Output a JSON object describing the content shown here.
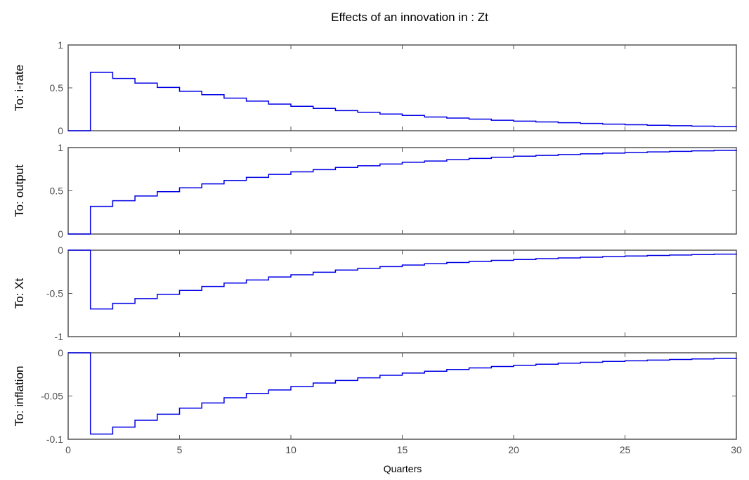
{
  "figure": {
    "title": "Effects of an innovation in : Zt",
    "xlabel": "Quarters"
  },
  "colors": {
    "line": "#0000e6",
    "frame": "#555555",
    "text": "#4d4d4d"
  },
  "chart_data": [
    {
      "type": "line",
      "step": true,
      "ylabel": "To: i-rate",
      "xlim": [
        0,
        30
      ],
      "ylim": [
        0,
        1
      ],
      "xticks": [
        0,
        5,
        10,
        15,
        20,
        25,
        30
      ],
      "yticks": [
        "0",
        "0.5",
        "1"
      ],
      "grid": false,
      "x": [
        0,
        1,
        2,
        3,
        4,
        5,
        6,
        7,
        8,
        9,
        10,
        11,
        12,
        13,
        14,
        15,
        16,
        17,
        18,
        19,
        20,
        21,
        22,
        23,
        24,
        25,
        26,
        27,
        28,
        29,
        30
      ],
      "values": [
        0,
        0.68,
        0.61,
        0.555,
        0.505,
        0.46,
        0.42,
        0.38,
        0.345,
        0.31,
        0.285,
        0.26,
        0.235,
        0.215,
        0.195,
        0.178,
        0.16,
        0.148,
        0.135,
        0.122,
        0.112,
        0.102,
        0.093,
        0.085,
        0.077,
        0.07,
        0.064,
        0.058,
        0.053,
        0.048,
        0.044
      ]
    },
    {
      "type": "line",
      "step": true,
      "ylabel": "To: output",
      "xlim": [
        0,
        30
      ],
      "ylim": [
        0,
        1
      ],
      "xticks": [
        0,
        5,
        10,
        15,
        20,
        25,
        30
      ],
      "yticks": [
        "0",
        "0.5",
        "1"
      ],
      "grid": false,
      "x": [
        0,
        1,
        2,
        3,
        4,
        5,
        6,
        7,
        8,
        9,
        10,
        11,
        12,
        13,
        14,
        15,
        16,
        17,
        18,
        19,
        20,
        21,
        22,
        23,
        24,
        25,
        26,
        27,
        28,
        29,
        30
      ],
      "values": [
        0,
        0.32,
        0.385,
        0.44,
        0.49,
        0.535,
        0.58,
        0.62,
        0.655,
        0.69,
        0.72,
        0.745,
        0.77,
        0.79,
        0.81,
        0.83,
        0.845,
        0.86,
        0.875,
        0.888,
        0.9,
        0.91,
        0.92,
        0.928,
        0.936,
        0.943,
        0.95,
        0.956,
        0.962,
        0.967,
        0.971
      ]
    },
    {
      "type": "line",
      "step": true,
      "ylabel": "To: Xt",
      "xlim": [
        0,
        30
      ],
      "ylim": [
        -1,
        0
      ],
      "xticks": [
        0,
        5,
        10,
        15,
        20,
        25,
        30
      ],
      "yticks": [
        "-1",
        "-0.5",
        "0"
      ],
      "grid": false,
      "x": [
        0,
        1,
        2,
        3,
        4,
        5,
        6,
        7,
        8,
        9,
        10,
        11,
        12,
        13,
        14,
        15,
        16,
        17,
        18,
        19,
        20,
        21,
        22,
        23,
        24,
        25,
        26,
        27,
        28,
        29,
        30
      ],
      "values": [
        0,
        -0.68,
        -0.615,
        -0.56,
        -0.51,
        -0.465,
        -0.42,
        -0.38,
        -0.345,
        -0.31,
        -0.285,
        -0.255,
        -0.23,
        -0.21,
        -0.19,
        -0.172,
        -0.156,
        -0.142,
        -0.13,
        -0.118,
        -0.108,
        -0.098,
        -0.089,
        -0.081,
        -0.074,
        -0.067,
        -0.061,
        -0.056,
        -0.051,
        -0.046,
        -0.042
      ]
    },
    {
      "type": "line",
      "step": true,
      "ylabel": "To: inflation",
      "xlim": [
        0,
        30
      ],
      "ylim": [
        -0.1,
        0
      ],
      "xticks": [
        0,
        5,
        10,
        15,
        20,
        25,
        30
      ],
      "yticks": [
        "-0.1",
        "-0.05",
        "0"
      ],
      "grid": false,
      "x": [
        0,
        1,
        2,
        3,
        4,
        5,
        6,
        7,
        8,
        9,
        10,
        11,
        12,
        13,
        14,
        15,
        16,
        17,
        18,
        19,
        20,
        21,
        22,
        23,
        24,
        25,
        26,
        27,
        28,
        29,
        30
      ],
      "values": [
        0,
        -0.094,
        -0.086,
        -0.078,
        -0.071,
        -0.064,
        -0.058,
        -0.052,
        -0.047,
        -0.043,
        -0.039,
        -0.035,
        -0.032,
        -0.029,
        -0.026,
        -0.0235,
        -0.0213,
        -0.0193,
        -0.0175,
        -0.0159,
        -0.0145,
        -0.0132,
        -0.012,
        -0.011,
        -0.01,
        -0.0092,
        -0.0084,
        -0.0077,
        -0.0071,
        -0.0065,
        -0.006
      ]
    }
  ]
}
